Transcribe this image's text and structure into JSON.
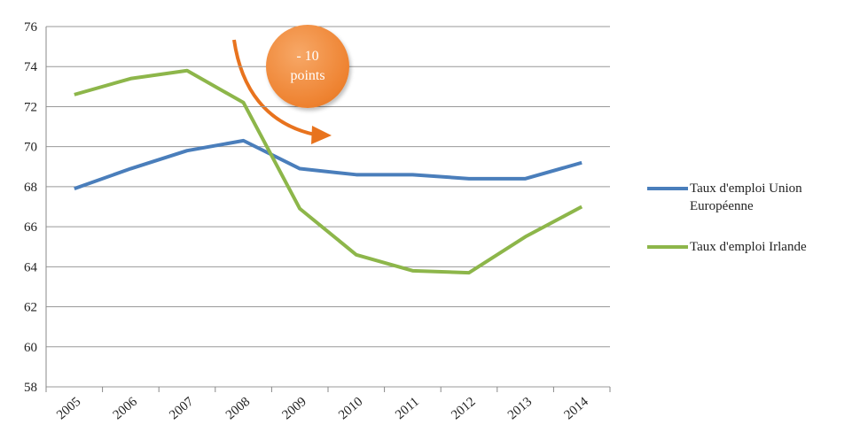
{
  "chart_data": {
    "type": "line",
    "categories": [
      "2005",
      "2006",
      "2007",
      "2008",
      "2009",
      "2010",
      "2011",
      "2012",
      "2013",
      "2014"
    ],
    "series": [
      {
        "name": "Taux d'emploi Union Européenne",
        "color": "#4a7ebb",
        "values": [
          67.9,
          68.9,
          69.8,
          70.3,
          68.9,
          68.6,
          68.6,
          68.4,
          68.4,
          69.2
        ]
      },
      {
        "name": "Taux d'emploi Irlande",
        "color": "#8db64a",
        "values": [
          72.6,
          73.4,
          73.8,
          72.2,
          66.9,
          64.6,
          63.8,
          63.7,
          65.5,
          67.0
        ]
      }
    ],
    "ylim": [
      58,
      76
    ],
    "yticks": [
      58,
      60,
      62,
      64,
      66,
      68,
      70,
      72,
      74,
      76
    ],
    "grid": true,
    "legend": "right",
    "annotation": "- 10 points"
  }
}
